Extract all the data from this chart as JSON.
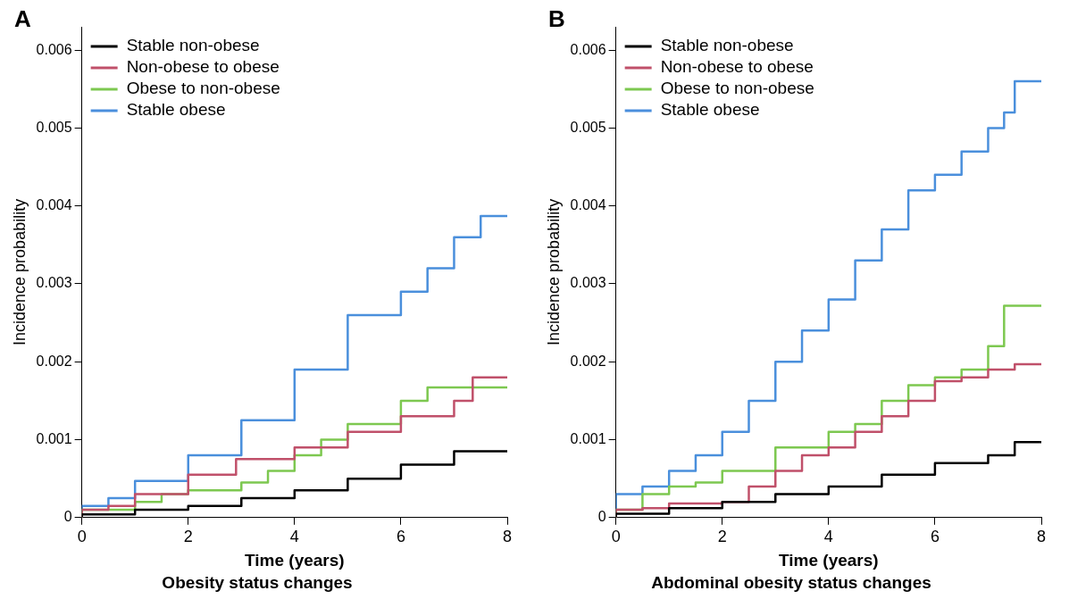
{
  "chart_data": [
    {
      "type": "step",
      "title": "Obesity status changes",
      "xlabel": "Time (years)",
      "ylabel": "Incidence probability",
      "annotations": [
        "A"
      ],
      "legend": "top left",
      "xlim": [
        0,
        8
      ],
      "ylim": [
        0,
        0.0063
      ],
      "xticks": [
        0,
        2,
        4,
        6,
        8
      ],
      "yticks": [
        0,
        0.001,
        0.002,
        0.003,
        0.004,
        0.005,
        0.006
      ],
      "grid": false,
      "line_style": "solid",
      "series": [
        {
          "name": "Stable non-obese",
          "color": "#000000",
          "x": [
            0,
            1,
            2,
            3,
            4,
            5,
            6,
            7,
            7.6,
            8
          ],
          "values": [
            0,
            4e-05,
            0.0001,
            0.00015,
            0.00025,
            0.00035,
            0.0005,
            0.00068,
            0.00085,
            0.00085
          ]
        },
        {
          "name": "Non-obese to obese",
          "color": "#c0506a",
          "x": [
            0,
            0.5,
            1,
            2,
            2.9,
            4,
            5,
            6,
            7,
            7.35,
            7.65,
            8
          ],
          "values": [
            0,
            0.0001,
            0.00015,
            0.0003,
            0.00055,
            0.00075,
            0.0009,
            0.0011,
            0.0013,
            0.0015,
            0.0018,
            0.0018
          ]
        },
        {
          "name": "Obese to non-obese",
          "color": "#7dc850",
          "x": [
            0,
            1,
            1.5,
            2,
            3,
            3.5,
            4,
            4.5,
            5,
            6,
            6.5,
            7.2,
            8
          ],
          "values": [
            0,
            0.0001,
            0.0002,
            0.0003,
            0.00035,
            0.00045,
            0.0006,
            0.0008,
            0.001,
            0.0012,
            0.0015,
            0.00167,
            0.00167
          ]
        },
        {
          "name": "Stable obese",
          "color": "#4a8fdc",
          "x": [
            0,
            0.5,
            1,
            2,
            3,
            4,
            5,
            6,
            6.5,
            7,
            7.5,
            7.65,
            8
          ],
          "values": [
            0,
            0.00015,
            0.00025,
            0.00047,
            0.0008,
            0.00125,
            0.0019,
            0.0026,
            0.0029,
            0.0032,
            0.0036,
            0.00387,
            0.00387
          ]
        }
      ]
    },
    {
      "type": "step",
      "title": "Abdominal obesity status changes",
      "xlabel": "Time (years)",
      "ylabel": "Incidence probability",
      "annotations": [
        "B"
      ],
      "legend": "top left",
      "xlim": [
        0,
        8
      ],
      "ylim": [
        0,
        0.0063
      ],
      "xticks": [
        0,
        2,
        4,
        6,
        8
      ],
      "yticks": [
        0,
        0.001,
        0.002,
        0.003,
        0.004,
        0.005,
        0.006
      ],
      "grid": false,
      "line_style": "solid",
      "series": [
        {
          "name": "Stable non-obese",
          "color": "#000000",
          "x": [
            0,
            1,
            2,
            3,
            4,
            5,
            6,
            7,
            7.5,
            7.8,
            8
          ],
          "values": [
            0,
            5e-05,
            0.00012,
            0.0002,
            0.0003,
            0.0004,
            0.00055,
            0.0007,
            0.0008,
            0.00097,
            0.00097
          ]
        },
        {
          "name": "Non-obese to obese",
          "color": "#c0506a",
          "x": [
            0,
            0.5,
            1,
            2,
            2.5,
            3,
            3.5,
            4,
            4.5,
            5,
            5.5,
            6,
            6.5,
            7,
            7.5,
            7.8,
            8
          ],
          "values": [
            0,
            0.0001,
            0.00012,
            0.00018,
            0.0002,
            0.0004,
            0.0006,
            0.0008,
            0.0009,
            0.0011,
            0.0013,
            0.0015,
            0.00175,
            0.0018,
            0.0019,
            0.00197,
            0.00197
          ]
        },
        {
          "name": "Obese to non-obese",
          "color": "#7dc850",
          "x": [
            0,
            0.5,
            1,
            1.5,
            2,
            3,
            4,
            4.5,
            5,
            5.5,
            6,
            6.5,
            7,
            7.3,
            7.7,
            8
          ],
          "values": [
            0,
            0.0001,
            0.0003,
            0.0004,
            0.00045,
            0.0006,
            0.0009,
            0.0011,
            0.0012,
            0.0015,
            0.0017,
            0.0018,
            0.0019,
            0.0022,
            0.00272,
            0.00272
          ]
        },
        {
          "name": "Stable obese",
          "color": "#4a8fdc",
          "x": [
            0,
            0.5,
            1,
            1.5,
            2,
            2.5,
            3,
            3.5,
            4,
            4.5,
            5,
            5.5,
            6,
            6.5,
            7,
            7.3,
            7.5,
            7.7,
            8
          ],
          "values": [
            0,
            0.0003,
            0.0004,
            0.0006,
            0.0008,
            0.0011,
            0.0015,
            0.002,
            0.0024,
            0.0028,
            0.0033,
            0.0037,
            0.0042,
            0.0044,
            0.0047,
            0.005,
            0.0052,
            0.0056,
            0.0056
          ]
        }
      ]
    }
  ]
}
